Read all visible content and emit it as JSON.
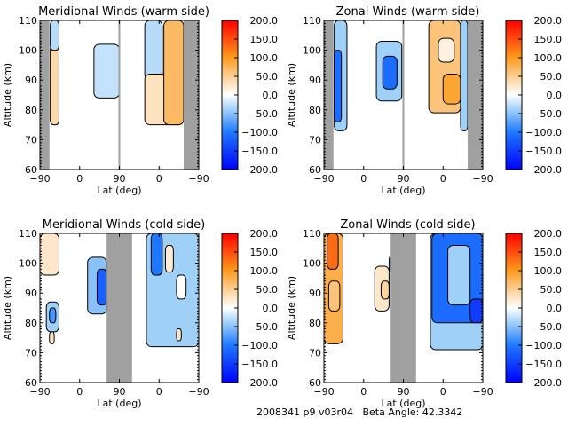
{
  "chart_data": [
    {
      "type": "heatmap",
      "title": "Meridional Winds (warm side)",
      "xlabel": "Lat (deg)",
      "ylabel": "Altitude (km)",
      "x_tick_labels": [
        "-90",
        "0",
        "90",
        "0",
        "-90"
      ],
      "y_ticks": [
        60,
        70,
        80,
        90,
        100,
        110
      ],
      "ylim": [
        60,
        110
      ],
      "colorbar": {
        "ticks": [
          "200.0",
          "150.0",
          "100.0",
          "50.0",
          "0.0",
          "-50.0",
          "-100.0",
          "-150.0",
          "-200.0"
        ],
        "range": [
          -200,
          200
        ]
      },
      "no_data_bands": [
        [
          0.0,
          0.06
        ],
        [
          0.905,
          1.0
        ]
      ],
      "divider": 0.5,
      "regions": [
        {
          "x": [
            0.065,
            0.12
          ],
          "y": [
            75,
            102
          ],
          "value": 40
        },
        {
          "x": [
            0.065,
            0.12
          ],
          "y": [
            100,
            110
          ],
          "value": -30
        },
        {
          "x": [
            0.34,
            0.5
          ],
          "y": [
            84,
            102
          ],
          "value": -25
        },
        {
          "x": [
            0.66,
            0.77
          ],
          "y": [
            90,
            110
          ],
          "value": -30
        },
        {
          "x": [
            0.66,
            0.905
          ],
          "y": [
            75,
            92
          ],
          "value": 30
        },
        {
          "x": [
            0.78,
            0.905
          ],
          "y": [
            75,
            110
          ],
          "value": 70
        }
      ]
    },
    {
      "type": "heatmap",
      "title": "Zonal Winds (warm side)",
      "xlabel": "Lat (deg)",
      "ylabel": "Altitude (km)",
      "x_tick_labels": [
        "-90",
        "0",
        "90",
        "0",
        "-90"
      ],
      "y_ticks": [
        60,
        70,
        80,
        90,
        100,
        110
      ],
      "ylim": [
        60,
        110
      ],
      "colorbar": {
        "ticks": [
          "200.0",
          "150.0",
          "100.0",
          "50.0",
          "0.0",
          "-50.0",
          "-100.0",
          "-150.0",
          "-200.0"
        ],
        "range": [
          -200,
          200
        ]
      },
      "no_data_bands": [
        [
          0.0,
          0.06
        ],
        [
          0.905,
          1.0
        ]
      ],
      "divider": 0.5,
      "regions": [
        {
          "x": [
            0.065,
            0.145
          ],
          "y": [
            73,
            110
          ],
          "value": -40
        },
        {
          "x": [
            0.065,
            0.11
          ],
          "y": [
            76,
            100
          ],
          "value": -110
        },
        {
          "x": [
            0.33,
            0.49
          ],
          "y": [
            83,
            103
          ],
          "value": -40
        },
        {
          "x": [
            0.37,
            0.46
          ],
          "y": [
            87,
            98
          ],
          "value": -110
        },
        {
          "x": [
            0.66,
            0.86
          ],
          "y": [
            79,
            110
          ],
          "value": 60
        },
        {
          "x": [
            0.72,
            0.82
          ],
          "y": [
            96,
            104
          ],
          "value": 15
        },
        {
          "x": [
            0.75,
            0.86
          ],
          "y": [
            82,
            92
          ],
          "value": 90
        },
        {
          "x": [
            0.86,
            0.905
          ],
          "y": [
            73,
            110
          ],
          "value": -40
        }
      ]
    },
    {
      "type": "heatmap",
      "title": "Meridional Winds (cold side)",
      "xlabel": "Lat (deg)",
      "ylabel": "Altitude (km)",
      "x_tick_labels": [
        "-90",
        "0",
        "90",
        "0",
        "-90"
      ],
      "y_ticks": [
        60,
        70,
        80,
        90,
        100,
        110
      ],
      "ylim": [
        60,
        110
      ],
      "colorbar": {
        "ticks": [
          "200.0",
          "150.0",
          "100.0",
          "50.0",
          "0.0",
          "-50.0",
          "-100.0",
          "-150.0",
          "-200.0"
        ],
        "range": [
          -200,
          200
        ]
      },
      "no_data_bands": [
        [
          0.42,
          0.58
        ]
      ],
      "divider": null,
      "regions": [
        {
          "x": [
            0.0,
            0.12
          ],
          "y": [
            96,
            110
          ],
          "value": 25
        },
        {
          "x": [
            0.04,
            0.12
          ],
          "y": [
            77,
            87
          ],
          "value": -40
        },
        {
          "x": [
            0.06,
            0.1
          ],
          "y": [
            80,
            85
          ],
          "value": -80
        },
        {
          "x": [
            0.06,
            0.09
          ],
          "y": [
            73,
            77
          ],
          "value": 25
        },
        {
          "x": [
            0.3,
            0.42
          ],
          "y": [
            83,
            102
          ],
          "value": -50
        },
        {
          "x": [
            0.36,
            0.42
          ],
          "y": [
            86,
            98
          ],
          "value": -120
        },
        {
          "x": [
            0.67,
            1.0
          ],
          "y": [
            72,
            110
          ],
          "value": -40
        },
        {
          "x": [
            0.7,
            0.77
          ],
          "y": [
            96,
            110
          ],
          "value": -100
        },
        {
          "x": [
            0.79,
            0.84
          ],
          "y": [
            97,
            106
          ],
          "value": 20
        },
        {
          "x": [
            0.86,
            0.92
          ],
          "y": [
            88,
            96
          ],
          "value": 0
        },
        {
          "x": [
            0.86,
            0.89
          ],
          "y": [
            74,
            78
          ],
          "value": 25
        }
      ]
    },
    {
      "type": "heatmap",
      "title": "Zonal Winds (cold side)",
      "xlabel": "Lat (deg)",
      "ylabel": "Altitude (km)",
      "x_tick_labels": [
        "-90",
        "0",
        "90",
        "0",
        "-90"
      ],
      "y_ticks": [
        60,
        70,
        80,
        90,
        100,
        110
      ],
      "ylim": [
        60,
        110
      ],
      "colorbar": {
        "ticks": [
          "200.0",
          "150.0",
          "100.0",
          "50.0",
          "0.0",
          "-50.0",
          "-100.0",
          "-150.0",
          "-200.0"
        ],
        "range": [
          -200,
          200
        ]
      },
      "no_data_bands": [
        [
          0.42,
          0.58
        ]
      ],
      "divider": null,
      "regions": [
        {
          "x": [
            0.0,
            0.12
          ],
          "y": [
            73,
            110
          ],
          "value": 80
        },
        {
          "x": [
            0.02,
            0.09
          ],
          "y": [
            98,
            110
          ],
          "value": 130
        },
        {
          "x": [
            0.03,
            0.1
          ],
          "y": [
            84,
            94
          ],
          "value": 60
        },
        {
          "x": [
            0.32,
            0.41
          ],
          "y": [
            84,
            99
          ],
          "value": 25
        },
        {
          "x": [
            0.36,
            0.41
          ],
          "y": [
            88,
            94
          ],
          "value": 45
        },
        {
          "x": [
            0.41,
            0.42
          ],
          "y": [
            97,
            102
          ],
          "value": -30
        },
        {
          "x": [
            0.67,
            1.0
          ],
          "y": [
            71,
            110
          ],
          "value": -40
        },
        {
          "x": [
            0.68,
            1.0
          ],
          "y": [
            80,
            110
          ],
          "value": -110
        },
        {
          "x": [
            0.78,
            0.92
          ],
          "y": [
            86,
            106
          ],
          "value": -40
        },
        {
          "x": [
            0.92,
            1.0
          ],
          "y": [
            80,
            88
          ],
          "value": -150
        }
      ]
    }
  ],
  "footer": {
    "text": "2008341 p9 v03r04   Beta Angle: 42.3342"
  },
  "colors": {
    "no_data": "#a0a0a0",
    "divider": "#a0a0a0"
  }
}
